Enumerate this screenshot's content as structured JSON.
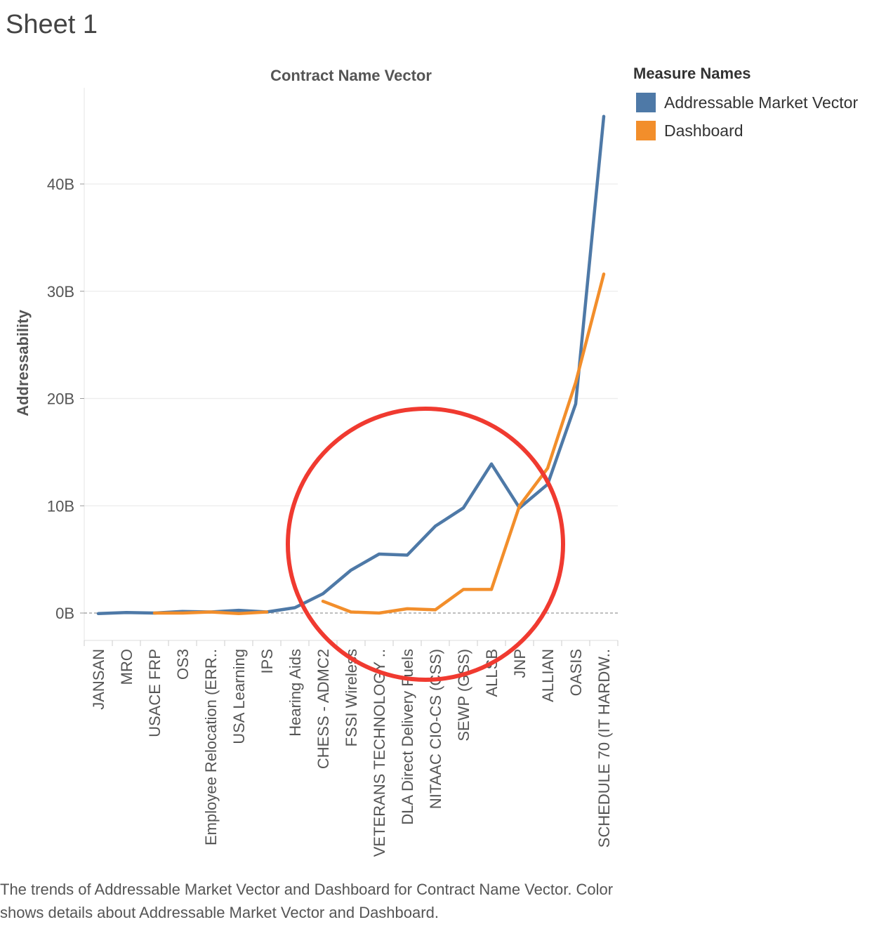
{
  "sheet_title": "Sheet 1",
  "caption": "The trends of Addressable Market Vector and Dashboard for Contract Name Vector.  Color shows details about Addressable Market Vector and Dashboard.",
  "legend": {
    "title": "Measure Names",
    "items": [
      {
        "label": "Addressable Market Vector",
        "color": "#4e79a7"
      },
      {
        "label": "Dashboard",
        "color": "#f28e2b"
      }
    ]
  },
  "annotation": {
    "shape": "circle",
    "color": "#f03a30"
  },
  "chart_data": {
    "type": "line",
    "title": "Contract Name Vector",
    "xlabel": "",
    "ylabel": "Addressability",
    "ylim": [
      -2.5,
      49
    ],
    "yticks": [
      0,
      10,
      20,
      30,
      40
    ],
    "ytick_labels": [
      "0B",
      "10B",
      "20B",
      "30B",
      "40B"
    ],
    "grid": true,
    "zero_line": "dashed",
    "legend_position": "top-right",
    "categories": [
      "JANSAN",
      "MRO",
      "USACE FRP",
      "OS3",
      "Employee Relocation (ERR..",
      "USA Learning",
      "IPS",
      "Hearing Aids",
      "CHESS - ADMC2",
      "FSSI Wireless",
      "VETERANS TECHNOLOGY ..",
      "DLA Direct Delivery Fuels",
      "NITAAC CIO-CS (CSS)",
      "SEWP (GSS)",
      "ALLSB",
      "JNP",
      "ALLIAN",
      "OASIS",
      "SCHEDULE 70 (IT HARDW.."
    ],
    "series": [
      {
        "name": "Addressable Market Vector",
        "color": "#4e79a7",
        "values": [
          -0.05,
          0.05,
          0.0,
          0.15,
          0.1,
          0.25,
          0.1,
          0.5,
          1.8,
          4.0,
          5.5,
          5.4,
          8.1,
          9.8,
          13.9,
          9.8,
          12.0,
          19.5,
          46.3
        ]
      },
      {
        "name": "Dashboard",
        "color": "#f28e2b",
        "values": [
          null,
          null,
          0.0,
          0.0,
          0.1,
          -0.05,
          0.1,
          null,
          1.1,
          0.1,
          0.0,
          0.4,
          0.3,
          2.2,
          2.2,
          10.0,
          13.5,
          21.5,
          31.6
        ]
      }
    ]
  }
}
